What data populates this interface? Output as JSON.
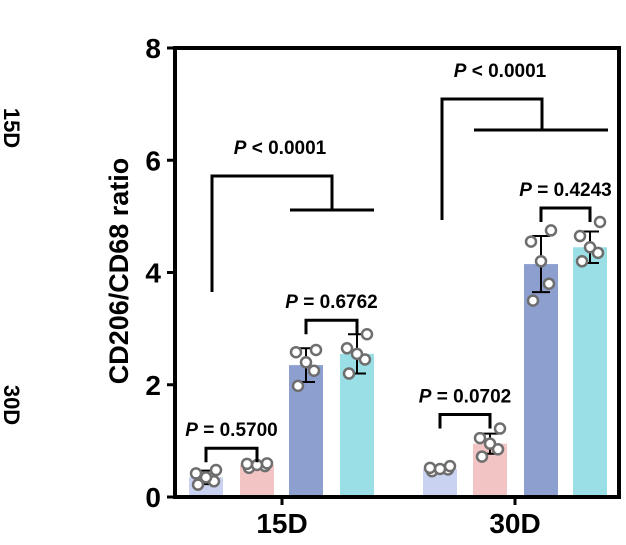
{
  "chart_data": {
    "type": "bar",
    "ylabel": "CD206/CD68 ratio",
    "ylim": [
      0,
      8
    ],
    "yticks": [
      "0",
      "2",
      "4",
      "6",
      "8"
    ],
    "categories": [
      "15D",
      "30D"
    ],
    "side_labels": [
      "15D",
      "30D"
    ],
    "bar_colors": [
      "#c9d3f1",
      "#f2c4c4",
      "#8c9fce",
      "#9adfe5"
    ],
    "groups": [
      {
        "category": "15D",
        "bars": [
          {
            "value": 0.35,
            "err": 0.12,
            "points": [
              0.22,
              0.28,
              0.35,
              0.42,
              0.48
            ]
          },
          {
            "value": 0.57,
            "err": 0.05,
            "points": [
              0.52,
              0.55,
              0.57,
              0.59,
              0.6
            ]
          },
          {
            "value": 2.35,
            "err": 0.3,
            "points": [
              1.98,
              2.25,
              2.4,
              2.58,
              2.62
            ]
          },
          {
            "value": 2.55,
            "err": 0.35,
            "points": [
              2.2,
              2.45,
              2.55,
              2.65,
              2.9
            ]
          }
        ]
      },
      {
        "category": "30D",
        "bars": [
          {
            "value": 0.5,
            "err": 0.05,
            "points": [
              0.46,
              0.49,
              0.5,
              0.52,
              0.55
            ]
          },
          {
            "value": 0.95,
            "err": 0.18,
            "points": [
              0.72,
              0.85,
              0.95,
              1.05,
              1.22
            ]
          },
          {
            "value": 4.15,
            "err": 0.5,
            "points": [
              3.5,
              3.8,
              4.2,
              4.55,
              4.75
            ]
          },
          {
            "value": 4.45,
            "err": 0.28,
            "points": [
              4.2,
              4.35,
              4.45,
              4.65,
              4.9
            ]
          }
        ]
      }
    ],
    "annotations": [
      {
        "text": "P = 0.5700"
      },
      {
        "text": "P = 0.6762"
      },
      {
        "text": "P < 0.0001"
      },
      {
        "text": "P = 0.0702"
      },
      {
        "text": "P = 0.4243"
      },
      {
        "text": "P < 0.0001"
      }
    ]
  }
}
